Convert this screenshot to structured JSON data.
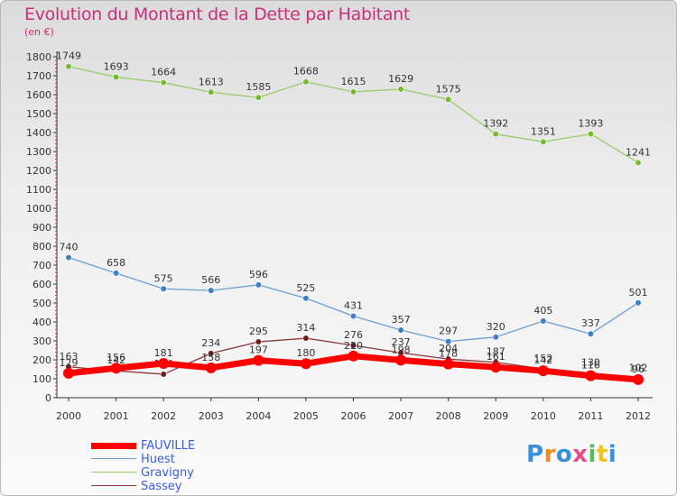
{
  "title": "Evolution du Montant de la Dette par Habitant",
  "subtitle": "(en €)",
  "logo": {
    "text": "Proxiti",
    "colors": [
      "#3a8fd9",
      "#f08c1e",
      "#3a8fd9",
      "#e84c8c",
      "#5cb85c",
      "#f0c419",
      "#3a8fd9"
    ]
  },
  "chart_data": {
    "type": "line",
    "title": "Evolution du Montant de la Dette par Habitant",
    "ylabel": "(en €)",
    "x": [
      "2000",
      "2001",
      "2002",
      "2003",
      "2004",
      "2005",
      "2006",
      "2007",
      "2008",
      "2009",
      "2010",
      "2011",
      "2012"
    ],
    "ylim": [
      0,
      1800
    ],
    "yticks": [
      0,
      100,
      200,
      300,
      400,
      500,
      600,
      700,
      800,
      900,
      1000,
      1100,
      1200,
      1300,
      1400,
      1500,
      1600,
      1700,
      1800
    ],
    "grid": false,
    "legend": "bottom-left",
    "series": [
      {
        "name": "Gravigny",
        "color": "#99cc66",
        "point_color": "#77bb33",
        "values": [
          1749,
          1693,
          1664,
          1613,
          1585,
          1668,
          1615,
          1629,
          1575,
          1392,
          1351,
          1393,
          1241
        ],
        "labels": [
          "1749",
          "1693",
          "1664",
          "1613",
          "1585",
          "1668",
          "1615",
          "1629",
          "1575",
          "1392",
          "1351",
          "1393",
          "1241"
        ],
        "label_pos": "above"
      },
      {
        "name": "Huest",
        "color": "#6e9ed0",
        "point_color": "#3f7fc4",
        "values": [
          740,
          658,
          575,
          566,
          596,
          525,
          431,
          357,
          297,
          320,
          405,
          337,
          501
        ],
        "labels": [
          "740",
          "658",
          "575",
          "566",
          "596",
          "525",
          "431",
          "357",
          "297",
          "320",
          "405",
          "337",
          "501"
        ],
        "label_pos": "above"
      },
      {
        "name": "Sassey",
        "color": "#8b3a3a",
        "point_color": "#6b1d1d",
        "values": [
          163,
          142,
          124,
          234,
          295,
          314,
          276,
          237,
          204,
          187,
          152,
          130,
          102
        ],
        "labels": [
          "163",
          "142",
          "124",
          "234",
          "295",
          "314",
          "276",
          "237",
          "204",
          "187",
          "152",
          "130",
          "102"
        ],
        "label_pos": "above"
      },
      {
        "name": "FAUVILLE",
        "color": "#ff0000",
        "point_color": "#ff0000",
        "values": [
          129,
          156,
          181,
          158,
          197,
          180,
          220,
          198,
          178,
          161,
          142,
          116,
          96
        ],
        "labels": [
          "129",
          "156",
          "181",
          "158",
          "197",
          "180",
          "220",
          "198",
          "178",
          "161",
          "142",
          "116",
          "96"
        ],
        "label_pos": "above"
      }
    ],
    "legend_items": [
      {
        "name": "FAUVILLE",
        "color": "#ff0000",
        "width": 7
      },
      {
        "name": "Huest",
        "color": "#6e9ed0",
        "width": 1.5
      },
      {
        "name": "Gravigny",
        "color": "#99cc66",
        "width": 1.5
      },
      {
        "name": "Sassey",
        "color": "#8b3a3a",
        "width": 1.5
      }
    ]
  }
}
